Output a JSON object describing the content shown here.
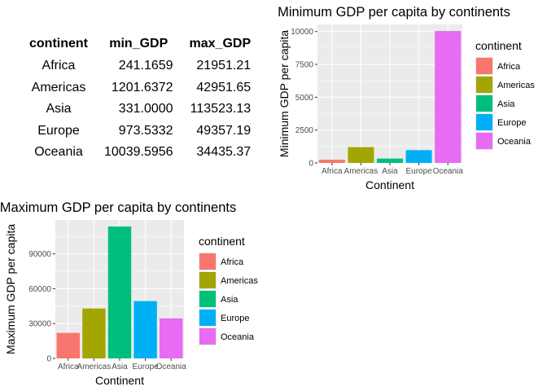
{
  "table": {
    "headers": [
      "continent",
      "min_GDP",
      "max_GDP"
    ],
    "rows": [
      {
        "continent": "Africa",
        "min_GDP": "241.1659",
        "max_GDP": "21951.21"
      },
      {
        "continent": "Americas",
        "min_GDP": "1201.6372",
        "max_GDP": "42951.65"
      },
      {
        "continent": "Asia",
        "min_GDP": "331.0000",
        "max_GDP": "113523.13"
      },
      {
        "continent": "Europe",
        "min_GDP": "973.5332",
        "max_GDP": "49357.19"
      },
      {
        "continent": "Oceania",
        "min_GDP": "10039.5956",
        "max_GDP": "34435.37"
      }
    ]
  },
  "colors": {
    "Africa": "#F8766D",
    "Americas": "#A3A500",
    "Asia": "#00BF7D",
    "Europe": "#00B0F6",
    "Oceania": "#E76BF3",
    "panel_bg": "#EBEBEB",
    "grid": "#FFFFFF"
  },
  "chart_data": [
    {
      "type": "bar",
      "title": "Minimum GDP per capita by continents",
      "xlabel": "Continent",
      "ylabel": "Minimum GDP per capita",
      "categories": [
        "Africa",
        "Americas",
        "Asia",
        "Europe",
        "Oceania"
      ],
      "values": [
        241.1659,
        1201.6372,
        331.0,
        973.5332,
        10039.5956
      ],
      "ylim": [
        0,
        10540
      ],
      "yticks": [
        0,
        2500,
        5000,
        7500,
        10000
      ],
      "ytick_labels": [
        "0",
        "2500",
        "5000",
        "7500",
        "10000"
      ],
      "legend_title": "continent",
      "legend": [
        "Africa",
        "Americas",
        "Asia",
        "Europe",
        "Oceania"
      ],
      "legend_position": "right",
      "grid": true
    },
    {
      "type": "bar",
      "title": "Maximum GDP per capita by continents",
      "xlabel": "Continent",
      "ylabel": "Maximum GDP per capita",
      "categories": [
        "Africa",
        "Americas",
        "Asia",
        "Europe",
        "Oceania"
      ],
      "values": [
        21951.21,
        42951.65,
        113523.13,
        49357.19,
        34435.37
      ],
      "ylim": [
        0,
        119200
      ],
      "yticks": [
        0,
        30000,
        60000,
        90000
      ],
      "ytick_labels": [
        "0",
        "30000",
        "60000",
        "90000"
      ],
      "legend_title": "continent",
      "legend": [
        "Africa",
        "Americas",
        "Asia",
        "Europe",
        "Oceania"
      ],
      "legend_position": "right",
      "grid": true
    }
  ]
}
